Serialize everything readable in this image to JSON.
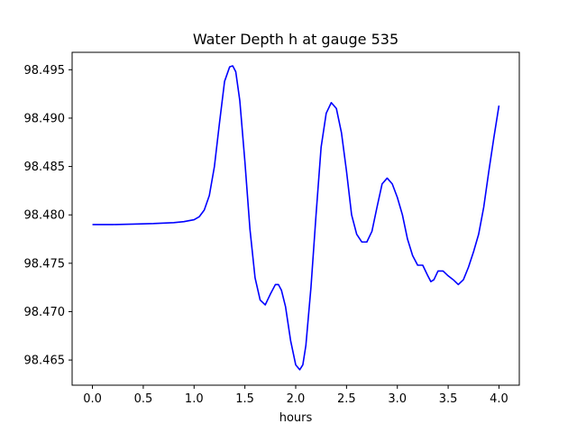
{
  "chart_data": {
    "type": "line",
    "title": "Water Depth h at gauge 535",
    "xlabel": "hours",
    "ylabel": "",
    "xlim": [
      -0.2,
      4.2
    ],
    "ylim": [
      98.4624,
      98.4968
    ],
    "xticks": [
      0.0,
      0.5,
      1.0,
      1.5,
      2.0,
      2.5,
      3.0,
      3.5,
      4.0
    ],
    "xtick_labels": [
      "0.0",
      "0.5",
      "1.0",
      "1.5",
      "2.0",
      "2.5",
      "3.0",
      "3.5",
      "4.0"
    ],
    "yticks": [
      98.465,
      98.47,
      98.475,
      98.48,
      98.485,
      98.49,
      98.495
    ],
    "ytick_labels": [
      "98.465",
      "98.470",
      "98.475",
      "98.480",
      "98.485",
      "98.490",
      "98.495"
    ],
    "grid": false,
    "series": [
      {
        "color": "#0000ff",
        "x": [
          0.0,
          0.2,
          0.4,
          0.6,
          0.7,
          0.8,
          0.9,
          1.0,
          1.05,
          1.1,
          1.15,
          1.2,
          1.25,
          1.3,
          1.35,
          1.38,
          1.41,
          1.45,
          1.5,
          1.55,
          1.6,
          1.65,
          1.7,
          1.75,
          1.8,
          1.83,
          1.86,
          1.9,
          1.95,
          2.0,
          2.04,
          2.07,
          2.1,
          2.15,
          2.2,
          2.25,
          2.3,
          2.35,
          2.4,
          2.45,
          2.5,
          2.55,
          2.6,
          2.65,
          2.7,
          2.75,
          2.8,
          2.85,
          2.9,
          2.95,
          3.0,
          3.05,
          3.1,
          3.15,
          3.2,
          3.25,
          3.3,
          3.33,
          3.36,
          3.4,
          3.45,
          3.5,
          3.55,
          3.6,
          3.65,
          3.7,
          3.75,
          3.8,
          3.85,
          3.9,
          3.95,
          4.0
        ],
        "y": [
          98.479,
          98.479,
          98.47905,
          98.4791,
          98.47915,
          98.4792,
          98.4793,
          98.4795,
          98.4798,
          98.4805,
          98.482,
          98.485,
          98.4895,
          98.4938,
          98.4953,
          98.4954,
          98.4948,
          98.4918,
          98.4855,
          98.4785,
          98.4735,
          98.4712,
          98.4707,
          98.4718,
          98.4728,
          98.4728,
          98.4722,
          98.4705,
          98.467,
          98.4645,
          98.464,
          98.4645,
          98.4665,
          98.4725,
          98.48,
          98.487,
          98.4905,
          98.4916,
          98.491,
          98.4885,
          98.4845,
          98.48,
          98.478,
          98.4772,
          98.4772,
          98.4783,
          98.4808,
          98.4832,
          98.4838,
          98.4832,
          98.4818,
          98.48,
          98.4775,
          98.4758,
          98.4748,
          98.4748,
          98.4737,
          98.4731,
          98.4733,
          98.4742,
          98.4742,
          98.4737,
          98.4733,
          98.4728,
          98.4733,
          98.4746,
          98.4762,
          98.478,
          98.4808,
          98.4845,
          98.488,
          98.4913
        ]
      }
    ]
  }
}
